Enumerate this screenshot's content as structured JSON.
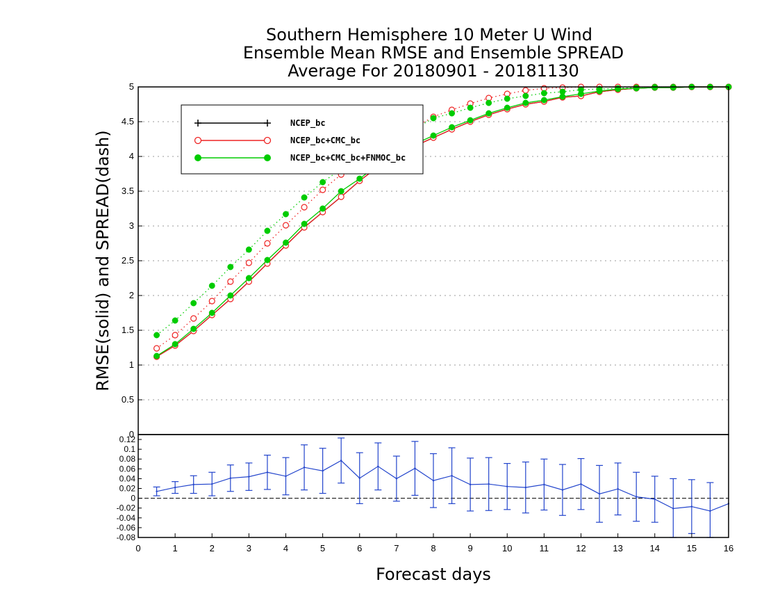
{
  "chart_data": [
    {
      "type": "line",
      "title": [
        "Southern Hemisphere 10 Meter U Wind",
        "Ensemble Mean RMSE and Ensemble SPREAD",
        "Average For 20180901 - 20181130"
      ],
      "xlabel": "",
      "ylabel": "RMSE(solid) and SPREAD(dash)",
      "xlim": [
        0,
        16
      ],
      "ylim": [
        0,
        5
      ],
      "yticks": [
        0,
        0.5,
        1,
        1.5,
        2,
        2.5,
        3,
        3.5,
        4,
        4.5,
        5
      ],
      "grid": true,
      "legend_position": "top-left",
      "x": [
        0.5,
        1,
        1.5,
        2,
        2.5,
        3,
        3.5,
        4,
        4.5,
        5,
        5.5,
        6,
        6.5,
        7,
        7.5,
        8,
        8.5,
        9,
        9.5,
        10,
        10.5,
        11,
        11.5,
        12,
        12.5,
        13,
        13.5,
        14,
        14.5,
        15,
        15.5,
        16
      ],
      "series": [
        {
          "name": "NCEP_bc",
          "style": "solid",
          "marker": "plus",
          "color": "#000000",
          "values": [
            1.12,
            1.28,
            1.49,
            1.72,
            1.95,
            2.2,
            2.46,
            2.72,
            2.98,
            3.2,
            3.42,
            3.65,
            3.85,
            4.01,
            4.15,
            4.27,
            4.39,
            4.5,
            4.6,
            4.68,
            4.75,
            4.79,
            4.85,
            4.87,
            4.93,
            4.96,
            4.98,
            4.99,
            4.99,
            5,
            5,
            5
          ]
        },
        {
          "name": "NCEP_bc+CMC_bc",
          "style": "solid",
          "marker": "open-circle",
          "color": "#ee2222",
          "values": [
            1.12,
            1.28,
            1.49,
            1.72,
            1.95,
            2.2,
            2.46,
            2.72,
            2.98,
            3.2,
            3.42,
            3.65,
            3.85,
            4.01,
            4.15,
            4.27,
            4.39,
            4.5,
            4.6,
            4.68,
            4.75,
            4.79,
            4.85,
            4.87,
            4.93,
            4.96,
            4.98,
            4.99,
            4.99,
            5,
            5,
            5
          ]
        },
        {
          "name": "NCEP_bc+CMC_bc+FNMOC_bc",
          "style": "solid",
          "marker": "filled-circle",
          "color": "#00cc00",
          "values": [
            1.13,
            1.3,
            1.52,
            1.75,
            2.0,
            2.25,
            2.51,
            2.76,
            3.03,
            3.25,
            3.5,
            3.68,
            3.88,
            4.05,
            4.18,
            4.3,
            4.42,
            4.52,
            4.62,
            4.7,
            4.77,
            4.81,
            4.86,
            4.9,
            4.94,
            4.97,
            4.98,
            4.99,
            4.99,
            5,
            5,
            5
          ]
        },
        {
          "name": "NCEP_bc+CMC_bc",
          "style": "dotted",
          "marker": "open-circle",
          "color": "#ee2222",
          "values": [
            1.24,
            1.43,
            1.67,
            1.92,
            2.2,
            2.47,
            2.75,
            3.01,
            3.27,
            3.52,
            3.74,
            3.92,
            4.1,
            4.25,
            4.42,
            4.57,
            4.67,
            4.76,
            4.84,
            4.9,
            4.95,
            4.98,
            4.99,
            5,
            5,
            5,
            5,
            5,
            5,
            5,
            5,
            5
          ]
        },
        {
          "name": "NCEP_bc+CMC_bc+FNMOC_bc",
          "style": "dotted",
          "marker": "filled-circle",
          "color": "#00cc00",
          "values": [
            1.43,
            1.64,
            1.89,
            2.14,
            2.41,
            2.66,
            2.93,
            3.17,
            3.41,
            3.63,
            3.82,
            3.99,
            4.13,
            4.26,
            4.4,
            4.55,
            4.62,
            4.7,
            4.77,
            4.83,
            4.87,
            4.91,
            4.93,
            4.96,
            4.97,
            4.98,
            4.99,
            5,
            5,
            5,
            5,
            5
          ]
        }
      ]
    },
    {
      "type": "errorbar",
      "title": "",
      "xlabel": "Forecast days",
      "ylabel": "",
      "xlim": [
        0,
        16
      ],
      "ylim": [
        -0.08,
        0.13
      ],
      "xticks": [
        0,
        1,
        2,
        3,
        4,
        5,
        6,
        7,
        8,
        9,
        10,
        11,
        12,
        13,
        14,
        15,
        16
      ],
      "yticks": [
        -0.08,
        -0.06,
        -0.04,
        -0.02,
        0,
        0.02,
        0.04,
        0.06,
        0.08,
        0.1,
        0.12
      ],
      "reference_line": 0,
      "series": [
        {
          "color": "#2244cc",
          "x": [
            0.5,
            1,
            1.5,
            2,
            2.5,
            3,
            3.5,
            4,
            4.5,
            5,
            5.5,
            6,
            6.5,
            7,
            7.5,
            8,
            8.5,
            9,
            9.5,
            10,
            10.5,
            11,
            11.5,
            12,
            12.5,
            13,
            13.5,
            14,
            14.5,
            15,
            15.5,
            16
          ],
          "values": [
            0.014,
            0.022,
            0.028,
            0.029,
            0.041,
            0.044,
            0.053,
            0.045,
            0.063,
            0.056,
            0.077,
            0.041,
            0.065,
            0.04,
            0.061,
            0.036,
            0.046,
            0.028,
            0.029,
            0.024,
            0.022,
            0.028,
            0.017,
            0.029,
            0.009,
            0.019,
            0.003,
            -0.002,
            -0.021,
            -0.017,
            -0.026,
            -0.011
          ],
          "errors": [
            0.009,
            0.012,
            0.018,
            0.024,
            0.027,
            0.028,
            0.035,
            0.038,
            0.046,
            0.046,
            0.046,
            0.052,
            0.048,
            0.046,
            0.055,
            0.055,
            0.057,
            0.054,
            0.054,
            0.047,
            0.052,
            0.052,
            0.052,
            0.052,
            0.058,
            0.053,
            0.05,
            0.047,
            0.061,
            0.055,
            0.058,
            0
          ]
        }
      ]
    }
  ]
}
